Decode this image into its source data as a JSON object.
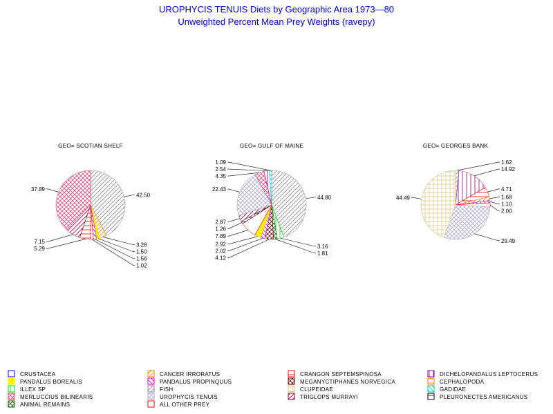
{
  "chart_data": {
    "type": "pie",
    "title": "UROPHYCIS TENUIS Diets by Geographic Area 1973—80",
    "subtitle": "Unweighted Percent Mean Prey Weights (ravepy)",
    "categories": [
      {
        "key": "crustacea",
        "label": "CRUSTACEA",
        "color": "#0000ff",
        "pattern": "outline"
      },
      {
        "key": "cancer",
        "label": "CANCER IRRORATUS",
        "color": "#ff8800",
        "pattern": "diag-r"
      },
      {
        "key": "crangon",
        "label": "CRANGON SEPTEMSPINOSA",
        "color": "#ff0000",
        "pattern": "hlines"
      },
      {
        "key": "dichelo",
        "label": "DICHELOPANDALUS LEPTOCERUS",
        "color": "#880088",
        "pattern": "vlines"
      },
      {
        "key": "pandalus_b",
        "label": "PANDALUS BOREALIS",
        "color": "#ffee00",
        "pattern": "solid"
      },
      {
        "key": "pandalus_p",
        "label": "PANDALUS PROPINQUUS",
        "color": "#cc00cc",
        "pattern": "diag-l"
      },
      {
        "key": "meganyct",
        "label": "MEGANYCTIPHANES NORVEGICA",
        "color": "#660000",
        "pattern": "cross-diag"
      },
      {
        "key": "cephalopoda",
        "label": "CEPHALOPODA",
        "color": "#ff8800",
        "pattern": "hlines"
      },
      {
        "key": "illex",
        "label": "ILLEX SP",
        "color": "#00cc00",
        "pattern": "vlines"
      },
      {
        "key": "fish",
        "label": "FISH",
        "color": "#888888",
        "pattern": "diag-r"
      },
      {
        "key": "clupeidae",
        "label": "CLUPEIDAE",
        "color": "#ddcc88",
        "pattern": "grid"
      },
      {
        "key": "gadidae",
        "label": "GADIDAE",
        "color": "#00cccc",
        "pattern": "diag-l"
      },
      {
        "key": "merluccius",
        "label": "MERLUCCIUS BILINEARIS",
        "color": "#dd4477",
        "pattern": "cross-diag"
      },
      {
        "key": "urophycis",
        "label": "UROPHYCIS TENUIS",
        "color": "#aaaacc",
        "pattern": "cross-diag"
      },
      {
        "key": "triglops",
        "label": "TRIGLOPS MURRAYI",
        "color": "#990033",
        "pattern": "diag-r"
      },
      {
        "key": "pleuronectes",
        "label": "PLEURONECTES AMERICANUS",
        "color": "#000000",
        "pattern": "hlines"
      },
      {
        "key": "animal",
        "label": "ANIMAL REMAINS",
        "color": "#006600",
        "pattern": "cross-diag"
      },
      {
        "key": "other",
        "label": "ALL OTHER PREY",
        "color": "#ff0000",
        "pattern": "outline"
      }
    ],
    "pies": [
      {
        "title": "GEO= SCOTIAN SHELF",
        "slices": [
          {
            "cat": "fish",
            "value": 42.5,
            "label": "42.50"
          },
          {
            "cat": "cancer",
            "value": 3.28,
            "label": "3.28"
          },
          {
            "cat": "pandalus_b",
            "value": 1.5,
            "label": "1.50"
          },
          {
            "cat": "pandalus_p",
            "value": 1.56,
            "label": "1.56"
          },
          {
            "cat": "other",
            "value": 1.02,
            "label": "1.02"
          },
          {
            "cat": "crangon",
            "value": 5.29,
            "label": "5.29"
          },
          {
            "cat": "triglops",
            "value": 7.15,
            "label": "7.15"
          },
          {
            "cat": "merluccius",
            "value": 37.89,
            "label": "37.89"
          }
        ]
      },
      {
        "title": "GEO= GULF OF MAINE",
        "slices": [
          {
            "cat": "fish",
            "value": 44.8,
            "label": "44.80"
          },
          {
            "cat": "illex",
            "value": 3.16,
            "label": "3.16"
          },
          {
            "cat": "animal",
            "value": 1.81,
            "label": "1.81"
          },
          {
            "cat": "meganyct",
            "value": 4.12,
            "label": "4.12"
          },
          {
            "cat": "pandalus_p",
            "value": 2.02,
            "label": "2.02"
          },
          {
            "cat": "pandalus_b",
            "value": 2.92,
            "label": "2.92"
          },
          {
            "cat": "other",
            "value": 7.89,
            "label": "7.89"
          },
          {
            "cat": "pleuronectes",
            "value": 1.26,
            "label": "1.26"
          },
          {
            "cat": "triglops",
            "value": 2.87,
            "label": "2.87"
          },
          {
            "cat": "urophycis",
            "value": 22.43,
            "label": "22.43"
          },
          {
            "cat": "merluccius",
            "value": 4.35,
            "label": "4.35"
          },
          {
            "cat": "dichelo",
            "value": 2.54,
            "label": "2.54"
          },
          {
            "cat": "gadidae",
            "value": 1.09,
            "label": "1.09"
          }
        ]
      },
      {
        "title": "GEO= GEORGES BANK",
        "slices": [
          {
            "cat": "fish",
            "value": 1.62,
            "label": "1.62"
          },
          {
            "cat": "dichelo",
            "value": 14.92,
            "label": "14.92"
          },
          {
            "cat": "crangon",
            "value": 4.71,
            "label": "4.71"
          },
          {
            "cat": "cancer",
            "value": 1.68,
            "label": "1.68"
          },
          {
            "cat": "pandalus_p",
            "value": 1.1,
            "label": "1.10"
          },
          {
            "cat": "other",
            "value": 2.0,
            "label": "2.00"
          },
          {
            "cat": "urophycis",
            "value": 29.49,
            "label": "29.49"
          },
          {
            "cat": "clupeidae",
            "value": 44.49,
            "label": "44.49"
          }
        ]
      }
    ]
  }
}
